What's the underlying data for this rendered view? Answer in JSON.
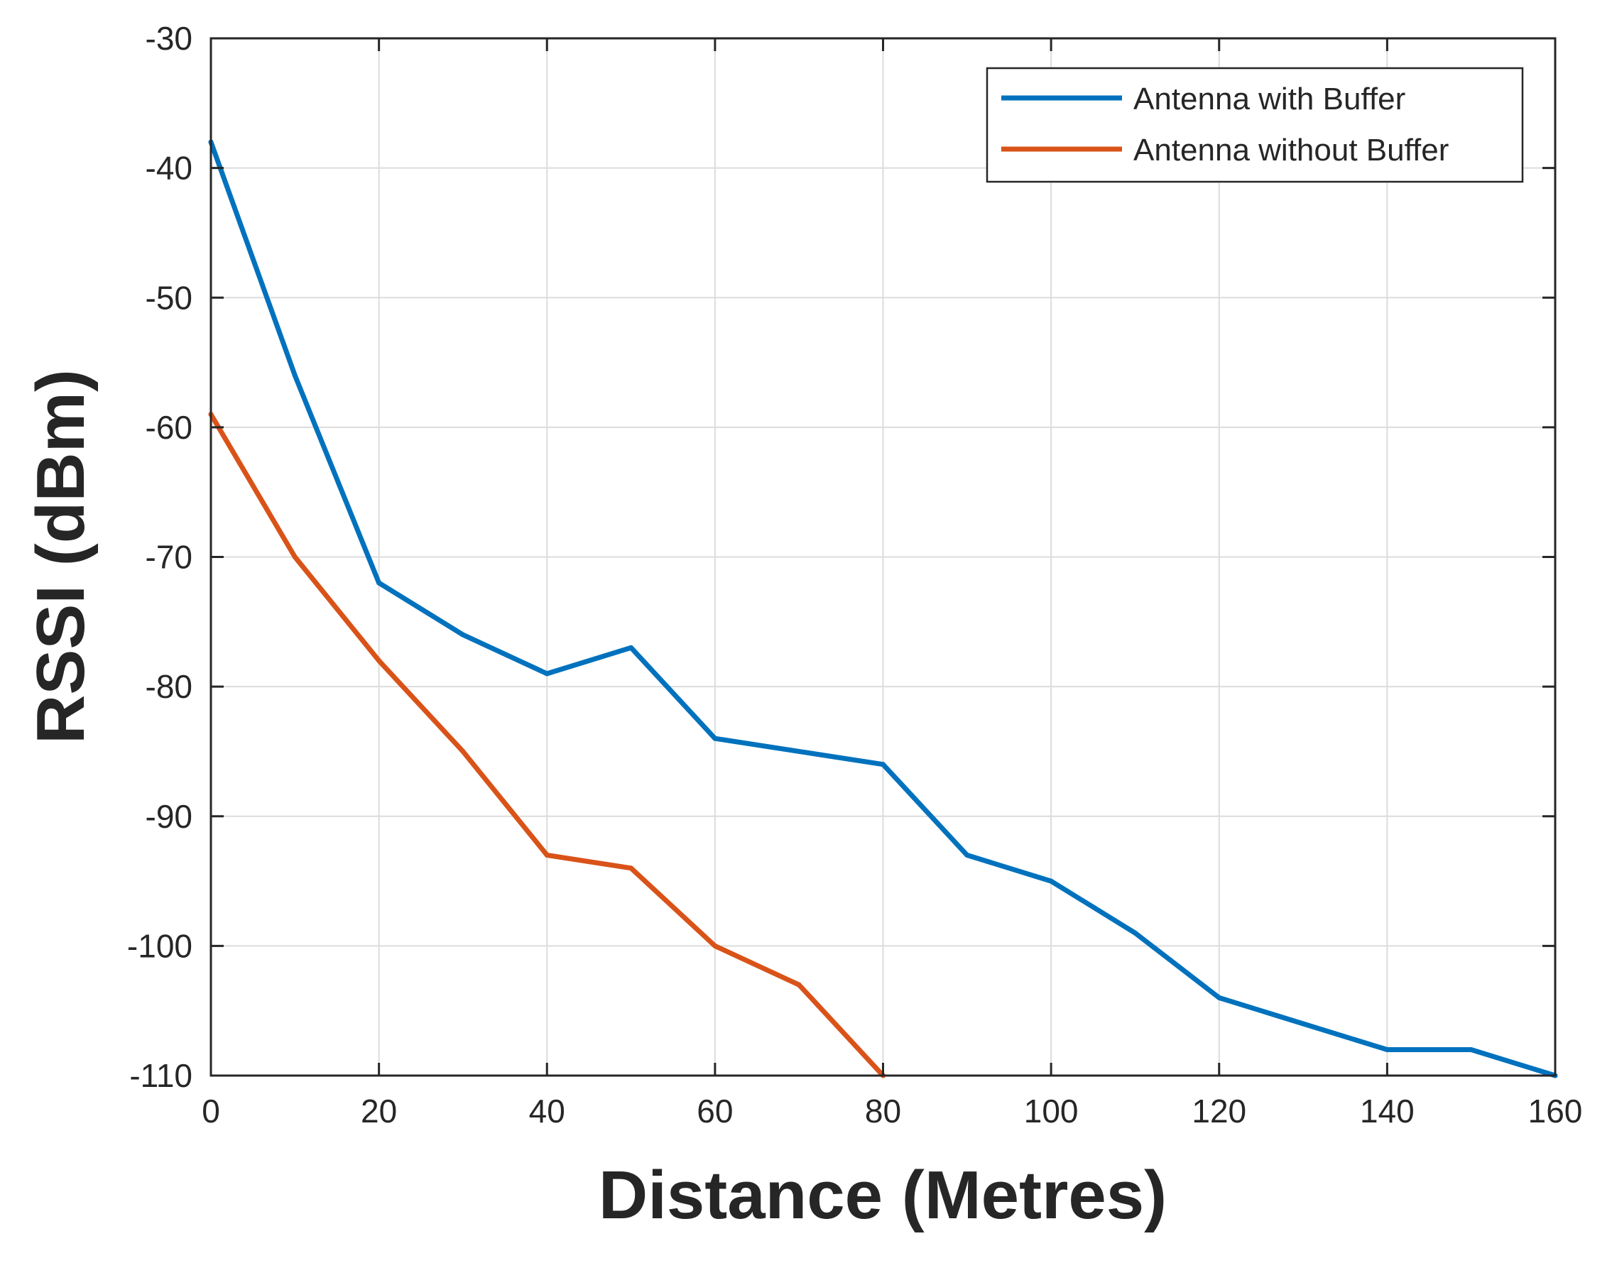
{
  "chart_data": {
    "type": "line",
    "title": "",
    "xlabel": "Distance (Metres)",
    "ylabel": "RSSI (dBm)",
    "xlim": [
      0,
      160
    ],
    "ylim": [
      -110,
      -30
    ],
    "xticks": [
      0,
      20,
      40,
      60,
      80,
      100,
      120,
      140,
      160
    ],
    "yticks": [
      -30,
      -40,
      -50,
      -60,
      -70,
      -80,
      -90,
      -100,
      -110
    ],
    "grid": true,
    "legend_position": "top-right",
    "series": [
      {
        "name": "Antenna with Buffer",
        "color": "#0072BD",
        "x": [
          0,
          10,
          20,
          30,
          40,
          50,
          60,
          70,
          80,
          90,
          100,
          110,
          120,
          130,
          140,
          150,
          160
        ],
        "y": [
          -38,
          -56,
          -72,
          -76,
          -79,
          -77,
          -84,
          -85,
          -86,
          -93,
          -95,
          -99,
          -104,
          -106,
          -108,
          -108,
          -110
        ]
      },
      {
        "name": "Antenna without Buffer",
        "color": "#D95319",
        "x": [
          0,
          10,
          20,
          30,
          40,
          50,
          60,
          70,
          80
        ],
        "y": [
          -59,
          -70,
          -78,
          -85,
          -93,
          -94,
          -100,
          -103,
          -110
        ]
      }
    ]
  }
}
